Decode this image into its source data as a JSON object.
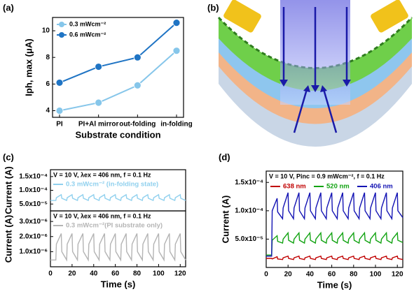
{
  "panel_labels": [
    "(a)",
    "(b)",
    "(c)",
    "(d)"
  ],
  "chart_data": [
    {
      "type": "line",
      "ylabel": "Iph, max (μA)",
      "xlabel": "Substrate condition",
      "categories": [
        "PI",
        "PI+Al mirror",
        "out-folding",
        "in-folding"
      ],
      "series": [
        {
          "name": "0.3 mWcm⁻²",
          "color": "#86c6ea",
          "values": [
            4.0,
            4.6,
            5.9,
            8.5
          ]
        },
        {
          "name": "0.6 mWcm⁻²",
          "color": "#1f74c4",
          "values": [
            6.1,
            7.3,
            8.0,
            10.6
          ]
        }
      ],
      "ylim": [
        3.5,
        11
      ],
      "yticks": [
        4,
        6,
        8,
        10
      ],
      "legend": "upper left",
      "markers": true
    },
    {
      "type": "line",
      "ylabel": "Current (A)",
      "annotation": "V = 10 V, λex = 406 nm, f = 0.1 Hz",
      "x": [
        0,
        5,
        5.5,
        10,
        10.5,
        15,
        15.5,
        20,
        20.5,
        25,
        25.5,
        30,
        30.5,
        35,
        35.5,
        40,
        40.5,
        45,
        45.5,
        50,
        50.5,
        55,
        55.5,
        60,
        60.5,
        65,
        65.5,
        70,
        70.5,
        75,
        75.5,
        80,
        80.5,
        85,
        85.5,
        90,
        90.5,
        95,
        95.5,
        100,
        100.5,
        105,
        105.5,
        110,
        110.5,
        115,
        115.5,
        120,
        120.5,
        125
      ],
      "series": [
        {
          "name": "0.3  mWcm⁻² (in-folding state)",
          "color": "#8fd0ee",
          "values": [
            6.3e-05,
            6.3e-05,
            7.3e-05,
            8.4e-05,
            7.1e-05,
            6.3e-05,
            7.3e-05,
            8.4e-05,
            7.1e-05,
            6.3e-05,
            7.3e-05,
            8.4e-05,
            7.1e-05,
            6.3e-05,
            7.3e-05,
            8.4e-05,
            7.1e-05,
            6.3e-05,
            7.3e-05,
            8.4e-05,
            7.1e-05,
            6.3e-05,
            7.3e-05,
            8.4e-05,
            7.1e-05,
            6.3e-05,
            7.3e-05,
            8.4e-05,
            7.1e-05,
            6.3e-05,
            7.3e-05,
            8.4e-05,
            7.1e-05,
            6.3e-05,
            7.3e-05,
            8.4e-05,
            7.1e-05,
            6.3e-05,
            7.3e-05,
            8.4e-05,
            7.1e-05,
            6.3e-05,
            7.3e-05,
            8.4e-05,
            7.1e-05,
            6.3e-05,
            7.3e-05,
            8.4e-05,
            7.1e-05,
            6.3e-05
          ]
        }
      ],
      "xlim": [
        0,
        125
      ],
      "ylim": [
        2.5e-05,
        0.000175
      ],
      "yticks": [
        {
          "value": 5e-05,
          "label": "5.0x10⁻⁵"
        },
        {
          "value": 0.0001,
          "label": "1.0x10⁻⁴"
        },
        {
          "value": 0.00015,
          "label": "1.5x10⁻⁴"
        }
      ],
      "legend": "upper left"
    },
    {
      "type": "line",
      "ylabel": "Current (A)",
      "xlabel": "Time (s)",
      "annotation": "V = 10 V, λex = 406 nm, f = 0.1 Hz",
      "x": [
        0,
        5,
        5.5,
        10,
        10.5,
        15,
        15.5,
        20,
        20.5,
        25,
        25.5,
        30,
        30.5,
        35,
        35.5,
        40,
        40.5,
        45,
        45.5,
        50,
        50.5,
        55,
        55.5,
        60,
        60.5,
        65,
        65.5,
        70,
        70.5,
        75,
        75.5,
        80,
        80.5,
        85,
        85.5,
        90,
        90.5,
        95,
        95.5,
        100,
        100.5,
        105,
        105.5,
        110,
        110.5,
        115,
        115.5,
        120,
        120.5,
        125
      ],
      "series": [
        {
          "name": "0.3  mWcm⁻²(PI substrate only)",
          "color": "#b4b4b4",
          "values": [
            4.5e-07,
            4.5e-07,
            1.5e-06,
            2.2e-06,
            1e-06,
            4.5e-07,
            1.5e-06,
            2.2e-06,
            1e-06,
            4.5e-07,
            1.5e-06,
            2.2e-06,
            1e-06,
            4.5e-07,
            1.5e-06,
            2.2e-06,
            1e-06,
            4.5e-07,
            1.5e-06,
            2.2e-06,
            1e-06,
            4.5e-07,
            1.5e-06,
            2.2e-06,
            1e-06,
            4.5e-07,
            1.5e-06,
            2.2e-06,
            1e-06,
            4.5e-07,
            1.5e-06,
            2.2e-06,
            1e-06,
            4.5e-07,
            1.5e-06,
            2.2e-06,
            1e-06,
            4.5e-07,
            1.5e-06,
            2.2e-06,
            1e-06,
            4.5e-07,
            1.5e-06,
            2.2e-06,
            1e-06,
            4.5e-07,
            1.5e-06,
            2.2e-06,
            1e-06,
            4.5e-07
          ]
        }
      ],
      "xlim": [
        0,
        125
      ],
      "ylim": [
        0,
        3.7e-06
      ],
      "xticks": [
        0,
        20,
        40,
        60,
        80,
        100,
        120
      ],
      "yticks": [
        {
          "value": 1e-06,
          "label": "1.0x10⁻⁶"
        },
        {
          "value": 2e-06,
          "label": "2.0x10⁻⁶"
        },
        {
          "value": 3e-06,
          "label": "3.0x10⁻⁶"
        }
      ],
      "legend": "upper left"
    },
    {
      "type": "line",
      "ylabel": "Current (A)",
      "xlabel": "Time (s)",
      "annotation": "V = 10 V, Pinc = 0.9 mWcm⁻², f = 0.1 Hz",
      "x": [
        0,
        5,
        5.5,
        10,
        10.5,
        15,
        15.5,
        20,
        20.5,
        25,
        25.5,
        30,
        30.5,
        35,
        35.5,
        40,
        40.5,
        45,
        45.5,
        50,
        50.5,
        55,
        55.5,
        60,
        60.5,
        65,
        65.5,
        70,
        70.5,
        75,
        75.5,
        80,
        80.5,
        85,
        85.5,
        90,
        90.5,
        95,
        95.5,
        100,
        100.5,
        105,
        105.5,
        110,
        110.5,
        115,
        115.5,
        120,
        120.5,
        125
      ],
      "series": [
        {
          "name": "638 nm",
          "color": "#c00000",
          "values": [
            1.6e-05,
            1.6e-05,
            1.5e-05,
            1.9e-05,
            1.5e-05,
            1.4e-05,
            1.7e-05,
            2e-05,
            1.6e-05,
            1.4e-05,
            1.7e-05,
            2e-05,
            1.6e-05,
            1.4e-05,
            1.7e-05,
            2e-05,
            1.6e-05,
            1.4e-05,
            1.7e-05,
            2e-05,
            1.6e-05,
            1.4e-05,
            1.7e-05,
            2e-05,
            1.6e-05,
            1.4e-05,
            1.7e-05,
            2e-05,
            1.6e-05,
            1.4e-05,
            1.7e-05,
            2e-05,
            1.6e-05,
            1.4e-05,
            1.7e-05,
            2e-05,
            1.6e-05,
            1.4e-05,
            1.7e-05,
            2e-05,
            1.6e-05,
            1.4e-05,
            1.7e-05,
            2e-05,
            1.6e-05,
            1.4e-05,
            1.7e-05,
            2e-05,
            1.6e-05,
            1.4e-05
          ]
        },
        {
          "name": "520 nm",
          "color": "#12a312",
          "values": [
            2.2e-05,
            2.2e-05,
            4.8e-05,
            5.6e-05,
            4.6e-05,
            4.3e-05,
            5e-05,
            6.1e-05,
            4.8e-05,
            4.3e-05,
            5e-05,
            6.1e-05,
            4.8e-05,
            4.3e-05,
            5e-05,
            6.1e-05,
            4.8e-05,
            4.3e-05,
            5e-05,
            6.1e-05,
            4.8e-05,
            4.3e-05,
            5e-05,
            6.1e-05,
            4.8e-05,
            4.3e-05,
            5e-05,
            6.1e-05,
            4.8e-05,
            4.3e-05,
            5e-05,
            6.1e-05,
            4.8e-05,
            4.3e-05,
            5e-05,
            6.1e-05,
            4.8e-05,
            4.3e-05,
            5e-05,
            6.1e-05,
            4.8e-05,
            4.3e-05,
            5e-05,
            6.1e-05,
            4.8e-05,
            4.3e-05,
            5e-05,
            6.1e-05,
            4.8e-05,
            4.4e-05
          ]
        },
        {
          "name": "406 nm",
          "color": "#1414b4",
          "values": [
            2e-05,
            2e-05,
            0.0001,
            0.000122,
            9.8e-05,
            8.6e-05,
            0.000105,
            0.000132,
            0.0001,
            8.6e-05,
            0.000105,
            0.000132,
            0.0001,
            8.6e-05,
            0.000105,
            0.000132,
            0.0001,
            8.6e-05,
            0.000105,
            0.000132,
            0.0001,
            8.6e-05,
            0.000105,
            0.000132,
            0.0001,
            8.6e-05,
            0.000105,
            0.000132,
            0.0001,
            8.6e-05,
            0.000105,
            0.000132,
            0.0001,
            8.6e-05,
            0.000105,
            0.000132,
            0.0001,
            8.6e-05,
            0.000105,
            0.000132,
            0.0001,
            8.6e-05,
            0.000105,
            0.000132,
            0.0001,
            8.6e-05,
            0.000105,
            0.000132,
            0.0001,
            8.8e-05
          ]
        }
      ],
      "xlim": [
        0,
        125
      ],
      "ylim": [
        0,
        0.00017
      ],
      "xticks": [
        0,
        20,
        40,
        60,
        80,
        100,
        120
      ],
      "yticks": [
        {
          "value": 5e-05,
          "label": "5.0x10⁻⁵"
        },
        {
          "value": 0.0001,
          "label": "1.0x10⁻⁴"
        },
        {
          "value": 0.00015,
          "label": "1.5x10⁻⁴"
        }
      ],
      "legend": "upper left"
    }
  ]
}
